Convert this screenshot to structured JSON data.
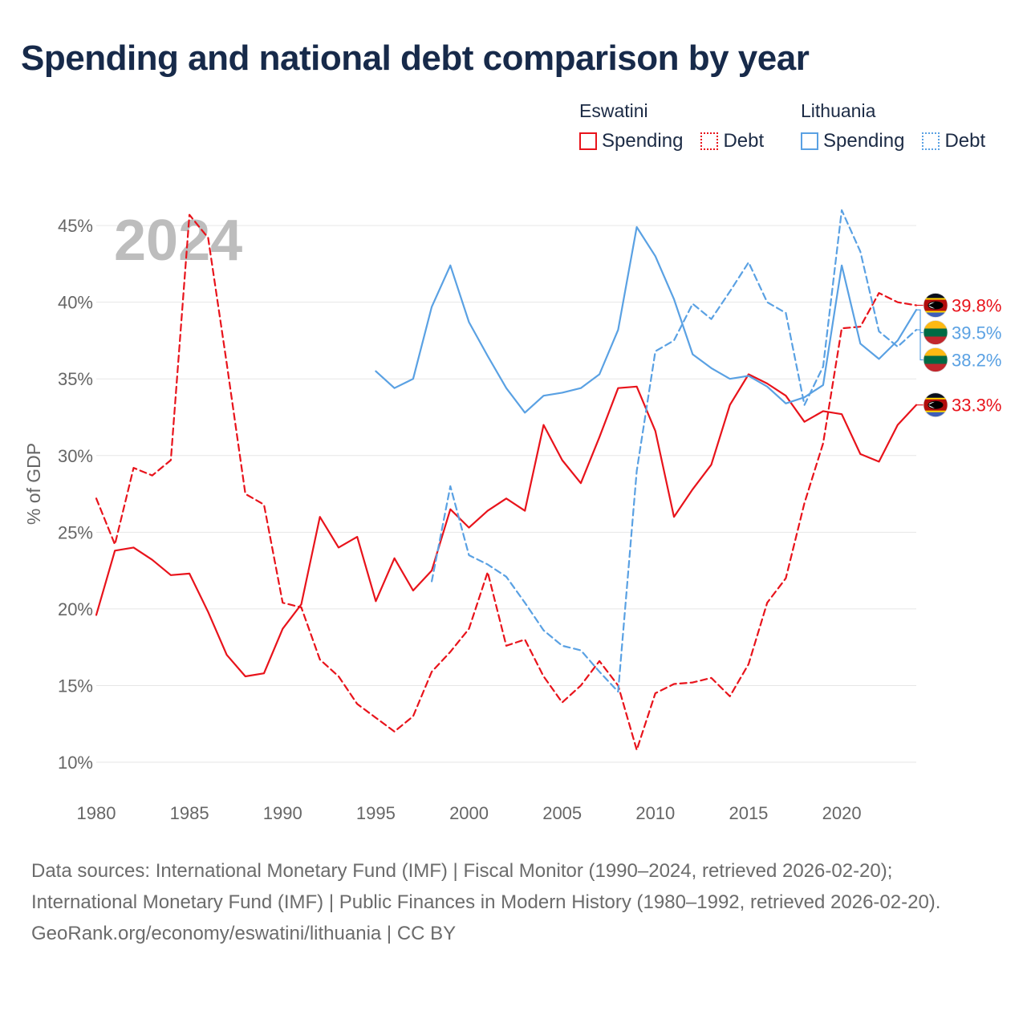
{
  "title": "Spending and national debt comparison by year",
  "legend": {
    "groups": [
      {
        "country": "Eswatini",
        "items": [
          {
            "label": "Spending",
            "style": "solid",
            "color": "#e8131b"
          },
          {
            "label": "Debt",
            "style": "dotted",
            "color": "#e8131b"
          }
        ]
      },
      {
        "country": "Lithuania",
        "items": [
          {
            "label": "Spending",
            "style": "solid",
            "color": "#5aa1e3"
          },
          {
            "label": "Debt",
            "style": "dotted",
            "color": "#5aa1e3"
          }
        ]
      }
    ]
  },
  "footer": {
    "sources": "Data sources: International Monetary Fund (IMF) | Fiscal Monitor (1990–2024, retrieved 2026-02-20); International Monetary Fund (IMF) | Public Finances in Modern History (1980–1992, retrieved 2026-02-20).",
    "credit": "GeoRank.org/economy/eswatini/lithuania | CC BY"
  },
  "chart_data": {
    "type": "line",
    "year_watermark": "2024",
    "ylabel": "% of GDP",
    "xlim": [
      1980,
      2024
    ],
    "ylim": [
      10,
      46
    ],
    "x_ticks": [
      1980,
      1985,
      1990,
      1995,
      2000,
      2005,
      2010,
      2015,
      2020
    ],
    "y_ticks": [
      10,
      15,
      20,
      25,
      30,
      35,
      40,
      45
    ],
    "y_tick_labels": [
      "10%",
      "15%",
      "20%",
      "25%",
      "30%",
      "35%",
      "40%",
      "45%"
    ],
    "series": [
      {
        "name": "Eswatini Spending",
        "country": "Eswatini",
        "metric": "Spending",
        "color": "#e8131b",
        "dash": "solid",
        "start_year": 1980,
        "values": [
          19.6,
          23.8,
          24.0,
          23.2,
          22.2,
          22.3,
          19.8,
          17.0,
          15.6,
          15.8,
          18.7,
          20.3,
          26.0,
          24.0,
          24.7,
          20.5,
          23.3,
          21.2,
          22.5,
          26.5,
          25.3,
          26.4,
          27.2,
          26.4,
          32.0,
          29.7,
          28.2,
          31.2,
          34.4,
          34.5,
          31.6,
          26.0,
          27.8,
          29.4,
          33.3,
          35.3,
          34.7,
          33.9,
          32.2,
          32.9,
          32.7,
          30.1,
          29.6,
          32.0,
          33.3
        ],
        "end_label": "33.3%",
        "end_flag": "eswatini"
      },
      {
        "name": "Eswatini Debt",
        "country": "Eswatini",
        "metric": "Debt",
        "color": "#e8131b",
        "dash": "dashed",
        "start_year": 1980,
        "values": [
          27.2,
          24.2,
          29.2,
          28.7,
          29.7,
          45.7,
          44.2,
          36.0,
          27.5,
          26.8,
          20.4,
          20.1,
          16.7,
          15.6,
          13.8,
          12.9,
          12.0,
          13.0,
          15.9,
          17.2,
          18.7,
          22.4,
          17.6,
          18.0,
          15.6,
          13.9,
          15.0,
          16.6,
          15.0,
          10.8,
          14.5,
          15.1,
          15.2,
          15.5,
          14.3,
          16.4,
          20.4,
          22.0,
          26.9,
          30.8,
          38.3,
          38.4,
          40.6,
          40.0,
          39.8
        ],
        "end_label": "39.8%",
        "end_flag": "eswatini"
      },
      {
        "name": "Lithuania Spending",
        "country": "Lithuania",
        "metric": "Spending",
        "color": "#5aa1e3",
        "dash": "solid",
        "start_year": 1995,
        "values": [
          35.5,
          34.4,
          35.0,
          39.7,
          42.4,
          38.7,
          36.5,
          34.4,
          32.8,
          33.9,
          34.1,
          34.4,
          35.3,
          38.2,
          44.9,
          43.0,
          40.2,
          36.6,
          35.7,
          35.0,
          35.2,
          34.5,
          33.4,
          33.8,
          34.6,
          42.4,
          37.3,
          36.3,
          37.5,
          39.5
        ],
        "end_label": "39.5%",
        "end_flag": "lithuania"
      },
      {
        "name": "Lithuania Debt",
        "country": "Lithuania",
        "metric": "Debt",
        "color": "#5aa1e3",
        "dash": "dashed",
        "start_year": 1998,
        "values": [
          21.8,
          28.0,
          23.5,
          22.9,
          22.1,
          20.4,
          18.6,
          17.6,
          17.3,
          15.9,
          14.6,
          29.0,
          36.8,
          37.5,
          39.9,
          38.9,
          40.7,
          42.6,
          40.0,
          39.3,
          33.3,
          35.8,
          46.0,
          43.3,
          38.1,
          37.1,
          38.2
        ],
        "end_label": "38.2%",
        "end_flag": "lithuania"
      }
    ]
  }
}
